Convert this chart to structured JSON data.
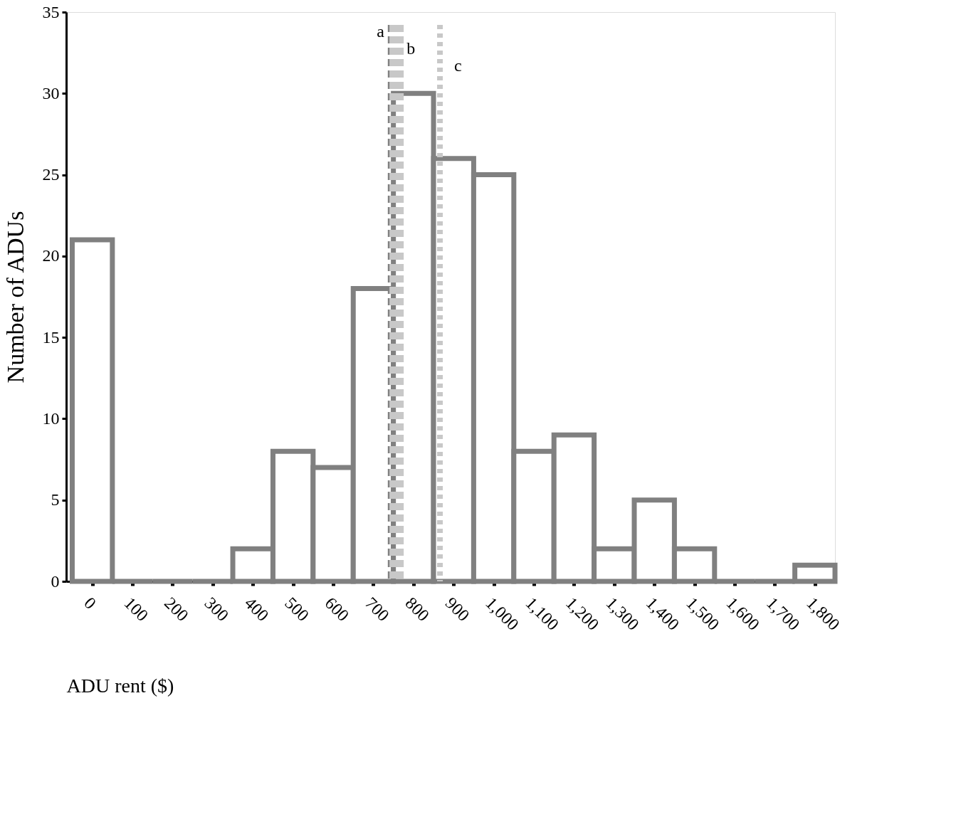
{
  "chart_data": {
    "type": "histogram",
    "xlabel": "ADU rent ($)",
    "ylabel": "Number of ADUs",
    "bins": [
      -50,
      50,
      150,
      250,
      350,
      450,
      550,
      650,
      750,
      850,
      950,
      1050,
      1150,
      1250,
      1350,
      1450,
      1550,
      1650,
      1750,
      1850
    ],
    "values": [
      21,
      0,
      0,
      0,
      2,
      8,
      7,
      18,
      30,
      26,
      25,
      8,
      9,
      2,
      5,
      2,
      0,
      0,
      1
    ],
    "color": "#808080",
    "xlim": [
      -65,
      1850
    ],
    "ylim": [
      0,
      35
    ],
    "xticks": [
      0,
      100,
      200,
      300,
      400,
      500,
      600,
      700,
      800,
      900,
      {
        "value": 1000,
        "label": "1,000"
      },
      {
        "value": 1100,
        "label": "1,100"
      },
      {
        "value": 1200,
        "label": "1,200"
      },
      {
        "value": 1300,
        "label": "1,300"
      },
      {
        "value": 1400,
        "label": "1,400"
      },
      {
        "value": 1500,
        "label": "1,500"
      },
      {
        "value": 1600,
        "label": "1,600"
      },
      {
        "value": 1700,
        "label": "1,700"
      },
      {
        "value": 1800,
        "label": "1,800"
      }
    ],
    "yticks": [
      0,
      5,
      10,
      15,
      20,
      25,
      30,
      35
    ],
    "ref_lines": [
      {
        "axis": "x",
        "value": 745,
        "label": "a",
        "color": "#808080",
        "line_style": "dashed"
      },
      {
        "axis": "x",
        "value": 758,
        "label": "b",
        "color": "#c8c8c8",
        "line_style": "dashed"
      },
      {
        "axis": "x",
        "value": 866,
        "label": "c",
        "color": "#c8c8c8",
        "line_style": "dotted"
      }
    ],
    "grid": false
  }
}
